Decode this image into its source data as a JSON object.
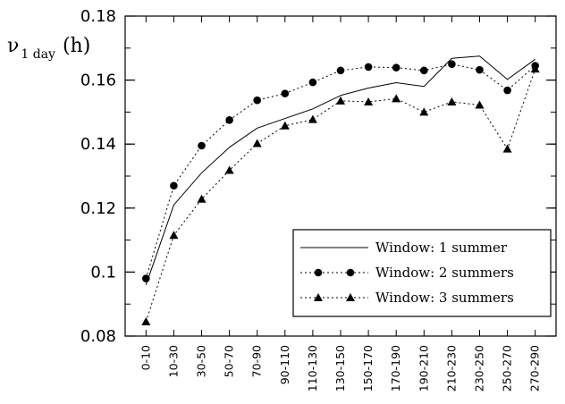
{
  "chart_data": {
    "type": "line",
    "title": "",
    "ylabel": {
      "symbol": "ν",
      "subscript": "1 day",
      "suffix": "(h)"
    },
    "xlabel": "",
    "categories": [
      "0-10",
      "10-30",
      "30-50",
      "50-70",
      "70-90",
      "90-110",
      "110-130",
      "130-150",
      "150-170",
      "170-190",
      "190-210",
      "210-230",
      "230-250",
      "250-270",
      "270-290"
    ],
    "ylim": [
      0.08,
      0.18
    ],
    "yticks": [
      0.08,
      0.1,
      0.12,
      0.14,
      0.16,
      0.18
    ],
    "ytick_labels": [
      "0.08",
      "0.1",
      "0.12",
      "0.14",
      "0.16",
      "0.18"
    ],
    "grid": false,
    "legend_position": "bottom-right",
    "series": [
      {
        "name": "Window: 1 summer",
        "style": "solid",
        "marker": "none",
        "values": [
          0.096,
          0.121,
          0.131,
          0.139,
          0.145,
          0.148,
          0.151,
          0.1552,
          0.1575,
          0.1592,
          0.158,
          0.1668,
          0.1675,
          0.1602,
          0.1665
        ]
      },
      {
        "name": "Window: 2 summers",
        "style": "dotted",
        "marker": "circle",
        "values": [
          0.098,
          0.127,
          0.1395,
          0.1475,
          0.1537,
          0.1558,
          0.1593,
          0.163,
          0.1641,
          0.1639,
          0.163,
          0.165,
          0.1632,
          0.1568,
          0.1645
        ]
      },
      {
        "name": "Window: 3 summers",
        "style": "dotted",
        "marker": "triangle",
        "values": [
          0.0845,
          0.1115,
          0.1228,
          0.1318,
          0.1402,
          0.1457,
          0.1477,
          0.1535,
          0.1532,
          0.1542,
          0.15,
          0.1532,
          0.1522,
          0.1385,
          0.1635
        ]
      }
    ]
  }
}
